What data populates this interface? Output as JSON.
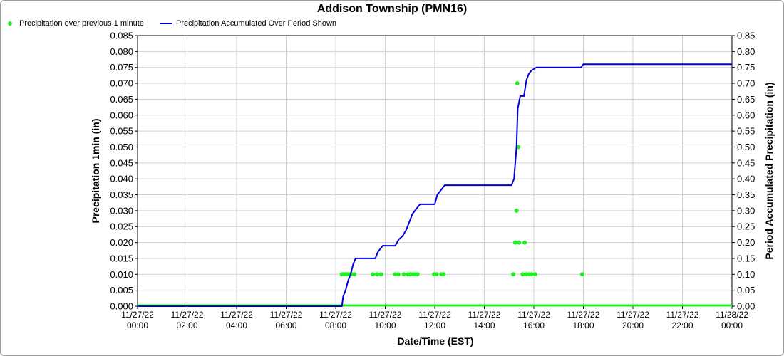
{
  "chart_data": {
    "type": "line",
    "title": "Addison Township (PMN16)",
    "xlabel": "Date/Time (EST)",
    "ylabel_left": "Precipitation 1min (in)",
    "ylabel_right": "Period Accumulated Precipitation (in)",
    "x_range_hours": [
      0,
      24
    ],
    "x_ticks": [
      {
        "date": "11/27/22",
        "time": "00:00"
      },
      {
        "date": "11/27/22",
        "time": "02:00"
      },
      {
        "date": "11/27/22",
        "time": "04:00"
      },
      {
        "date": "11/27/22",
        "time": "06:00"
      },
      {
        "date": "11/27/22",
        "time": "08:00"
      },
      {
        "date": "11/27/22",
        "time": "10:00"
      },
      {
        "date": "11/27/22",
        "time": "12:00"
      },
      {
        "date": "11/27/22",
        "time": "14:00"
      },
      {
        "date": "11/27/22",
        "time": "16:00"
      },
      {
        "date": "11/27/22",
        "time": "18:00"
      },
      {
        "date": "11/27/22",
        "time": "20:00"
      },
      {
        "date": "11/27/22",
        "time": "22:00"
      },
      {
        "date": "11/28/22",
        "time": "00:00"
      }
    ],
    "y_left": {
      "min": 0,
      "max": 0.085,
      "ticks": [
        "0.000",
        "0.005",
        "0.010",
        "0.015",
        "0.020",
        "0.025",
        "0.030",
        "0.035",
        "0.040",
        "0.045",
        "0.050",
        "0.055",
        "0.060",
        "0.065",
        "0.070",
        "0.075",
        "0.080",
        "0.085"
      ]
    },
    "y_right": {
      "min": 0,
      "max": 0.85,
      "ticks": [
        "0.00",
        "0.05",
        "0.10",
        "0.15",
        "0.20",
        "0.25",
        "0.30",
        "0.35",
        "0.40",
        "0.45",
        "0.50",
        "0.55",
        "0.60",
        "0.65",
        "0.70",
        "0.75",
        "0.80",
        "0.85"
      ]
    },
    "grid": true,
    "legend_position": "top-left",
    "series": [
      {
        "name": "Precipitation over previous 1 minute",
        "type": "scatter",
        "axis": "left",
        "color": "#22ee22",
        "points": [
          [
            8.25,
            0.01
          ],
          [
            8.33,
            0.01
          ],
          [
            8.4,
            0.01
          ],
          [
            8.47,
            0.01
          ],
          [
            8.53,
            0.01
          ],
          [
            8.6,
            0.01
          ],
          [
            8.67,
            0.01
          ],
          [
            8.75,
            0.01
          ],
          [
            9.5,
            0.01
          ],
          [
            9.67,
            0.01
          ],
          [
            9.83,
            0.01
          ],
          [
            10.4,
            0.01
          ],
          [
            10.53,
            0.01
          ],
          [
            10.75,
            0.01
          ],
          [
            10.92,
            0.01
          ],
          [
            11.0,
            0.01
          ],
          [
            11.1,
            0.01
          ],
          [
            11.2,
            0.01
          ],
          [
            11.3,
            0.01
          ],
          [
            11.97,
            0.01
          ],
          [
            12.07,
            0.01
          ],
          [
            12.27,
            0.01
          ],
          [
            12.35,
            0.01
          ],
          [
            15.17,
            0.01
          ],
          [
            15.25,
            0.02
          ],
          [
            15.3,
            0.03
          ],
          [
            15.33,
            0.07
          ],
          [
            15.37,
            0.05
          ],
          [
            15.4,
            0.02
          ],
          [
            15.55,
            0.01
          ],
          [
            15.63,
            0.02
          ],
          [
            15.7,
            0.01
          ],
          [
            15.8,
            0.01
          ],
          [
            15.9,
            0.01
          ],
          [
            16.05,
            0.01
          ],
          [
            17.95,
            0.01
          ]
        ],
        "zero_line": true
      },
      {
        "name": "Precipitation Accumulated Over Period Shown",
        "type": "step-line",
        "axis": "right",
        "color": "#0000dd",
        "points": [
          [
            0,
            0
          ],
          [
            8.25,
            0
          ],
          [
            8.3,
            0.03
          ],
          [
            8.4,
            0.05
          ],
          [
            8.5,
            0.08
          ],
          [
            8.6,
            0.1
          ],
          [
            8.7,
            0.13
          ],
          [
            8.8,
            0.15
          ],
          [
            9.6,
            0.15
          ],
          [
            9.7,
            0.17
          ],
          [
            9.8,
            0.18
          ],
          [
            9.9,
            0.19
          ],
          [
            10.4,
            0.19
          ],
          [
            10.55,
            0.21
          ],
          [
            10.7,
            0.22
          ],
          [
            10.85,
            0.24
          ],
          [
            11.0,
            0.27
          ],
          [
            11.1,
            0.29
          ],
          [
            11.2,
            0.3
          ],
          [
            11.4,
            0.32
          ],
          [
            12.0,
            0.32
          ],
          [
            12.1,
            0.35
          ],
          [
            12.2,
            0.36
          ],
          [
            12.4,
            0.38
          ],
          [
            15.1,
            0.38
          ],
          [
            15.2,
            0.4
          ],
          [
            15.3,
            0.5
          ],
          [
            15.35,
            0.62
          ],
          [
            15.45,
            0.66
          ],
          [
            15.6,
            0.66
          ],
          [
            15.7,
            0.71
          ],
          [
            15.8,
            0.73
          ],
          [
            15.9,
            0.74
          ],
          [
            16.1,
            0.75
          ],
          [
            17.9,
            0.75
          ],
          [
            18.0,
            0.76
          ],
          [
            24,
            0.76
          ]
        ]
      }
    ]
  }
}
